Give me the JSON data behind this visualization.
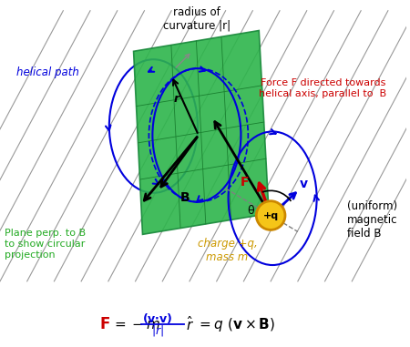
{
  "bg_color": "#ffffff",
  "green_plane_color": "#2db54b",
  "blue_color": "#0000dd",
  "black_color": "#000000",
  "red_color": "#cc0000",
  "gold_color": "#f5c518",
  "gold_edge": "#cc8800",
  "green_label_color": "#22aa22",
  "gold_label_color": "#cc9900",
  "gray_line_color": "#999999",
  "label_helical_path": "helical path",
  "label_radius": "radius of\ncurvature |r|",
  "label_force": "Force F directed towards\nhelical axis, parallel to  B",
  "label_plane": "Plane perp. to B\nto show circular\nprojection",
  "label_charge": "charge +q,\nmass m",
  "label_field": "(uniform)\nmagnetic\nfield B"
}
